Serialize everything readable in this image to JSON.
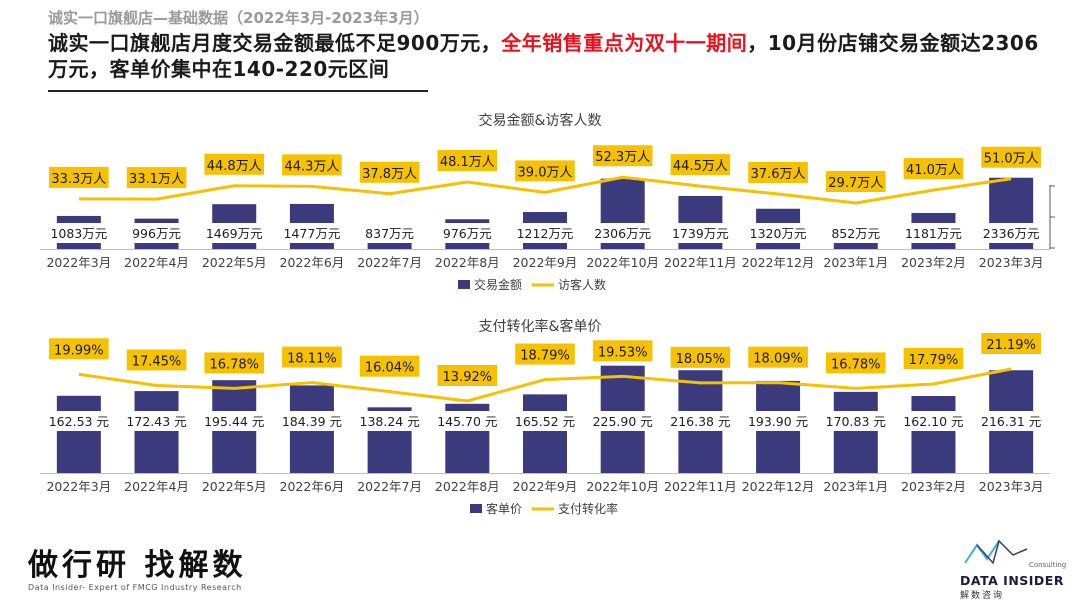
{
  "page": {
    "kicker": "诚实一口旗舰店—基础数据（2022年3月-2023年3月）",
    "headline_part1": "诚实一口旗舰店月度交易金额最低不足900万元，",
    "headline_highlight": "全年销售重点为双十一期间",
    "headline_part2": "，10月份店铺交易金额达2306万元，客单价集中在140-220元区间",
    "footer_title": "做行研 找解数",
    "footer_subtitle": "Data Insider- Expert of FMCG Industry Research",
    "logo_consulting": "Consulting",
    "logo_name": "DATA INSIDER",
    "logo_cn": "解数咨询"
  },
  "colors": {
    "bar": "#3b3a7c",
    "line": "#f5c100",
    "highlight_text": "#e8131c",
    "axis": "#bfbfbf"
  },
  "chart_data": [
    {
      "type": "bar+line",
      "title": "交易金额&访客人数",
      "categories": [
        "2022年3月",
        "2022年4月",
        "2022年5月",
        "2022年6月",
        "2022年7月",
        "2022年8月",
        "2022年9月",
        "2022年10月",
        "2022年11月",
        "2022年12月",
        "2023年1月",
        "2023年2月",
        "2023年3月"
      ],
      "series": [
        {
          "name": "交易金额",
          "kind": "bar",
          "unit": "万元",
          "values": [
            1083,
            996,
            1469,
            1477,
            837,
            976,
            1212,
            2306,
            1739,
            1320,
            852,
            1181,
            2336
          ],
          "labels": [
            "1083万元",
            "996万元",
            "1469万元",
            "1477万元",
            "837万元",
            "976万元",
            "1212万元",
            "2306万元",
            "1739万元",
            "1320万元",
            "852万元",
            "1181万元",
            "2336万元"
          ]
        },
        {
          "name": "访客人数",
          "kind": "line",
          "unit": "万人",
          "values": [
            33.3,
            33.1,
            44.8,
            44.3,
            37.8,
            48.1,
            39.0,
            52.3,
            44.5,
            37.6,
            29.7,
            41.0,
            51.0
          ],
          "labels": [
            "33.3万人",
            "33.1万人",
            "44.8万人",
            "44.3万人",
            "37.8万人",
            "48.1万人",
            "39.0万人",
            "52.3万人",
            "44.5万人",
            "37.6万人",
            "29.7万人",
            "41.0万人",
            "51.0万人"
          ]
        }
      ],
      "legend_position": "bottom"
    },
    {
      "type": "bar+line",
      "title": "支付转化率&客单价",
      "categories": [
        "2022年3月",
        "2022年4月",
        "2022年5月",
        "2022年6月",
        "2022年7月",
        "2022年8月",
        "2022年9月",
        "2022年10月",
        "2022年11月",
        "2022年12月",
        "2023年1月",
        "2023年2月",
        "2023年3月"
      ],
      "series": [
        {
          "name": "客单价",
          "kind": "bar",
          "unit": "元",
          "values": [
            162.53,
            172.43,
            195.44,
            184.39,
            138.24,
            145.7,
            165.52,
            225.9,
            216.38,
            193.9,
            170.83,
            162.1,
            216.31
          ],
          "labels": [
            "162.53 元",
            "172.43 元",
            "195.44 元",
            "184.39 元",
            "138.24 元",
            "145.70 元",
            "165.52 元",
            "225.90 元",
            "216.38 元",
            "193.90 元",
            "170.83 元",
            "162.10 元",
            "216.31 元"
          ]
        },
        {
          "name": "支付转化率",
          "kind": "line",
          "unit": "%",
          "values": [
            19.99,
            17.45,
            16.78,
            18.11,
            16.04,
            13.92,
            18.79,
            19.53,
            18.05,
            18.09,
            16.78,
            17.79,
            21.19
          ],
          "labels": [
            "19.99%",
            "17.45%",
            "16.78%",
            "18.11%",
            "16.04%",
            "13.92%",
            "18.79%",
            "19.53%",
            "18.05%",
            "18.09%",
            "16.78%",
            "17.79%",
            "21.19%"
          ]
        }
      ],
      "legend_position": "bottom"
    }
  ]
}
